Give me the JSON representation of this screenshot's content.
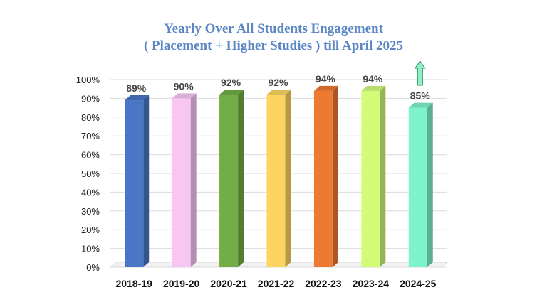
{
  "chart_data": {
    "type": "bar",
    "title": "Yearly Over All Students Engagement",
    "subtitle": "( Placement + Higher Studies ) till April 2025",
    "categories": [
      "2018-19",
      "2019-20",
      "2020-21",
      "2021-22",
      "2022-23",
      "2023-24",
      "2024-25"
    ],
    "values": [
      89,
      90,
      92,
      92,
      94,
      94,
      85
    ],
    "data_labels": [
      "89%",
      "90%",
      "92%",
      "92%",
      "94%",
      "94%",
      "85%"
    ],
    "colors": [
      "#4a76c7",
      "#f9c6f4",
      "#72ad47",
      "#fdd462",
      "#ec7a31",
      "#d2fb78",
      "#7ef2c9"
    ],
    "ylim": [
      0,
      100
    ],
    "yticks": [
      "0%",
      "10%",
      "20%",
      "30%",
      "40%",
      "50%",
      "60%",
      "70%",
      "80%",
      "90%",
      "100%"
    ],
    "grid": true,
    "legend": "none",
    "annotation": "up-arrow-icon",
    "annotation_color": "#8ff0c2"
  }
}
